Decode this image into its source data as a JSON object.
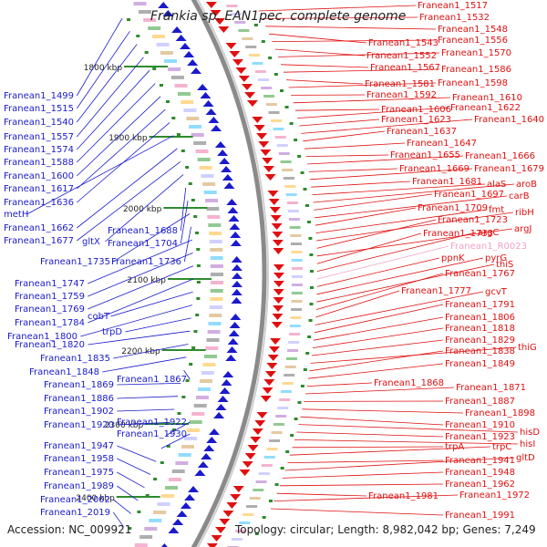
{
  "title": "Frankia sp. EAN1pec, complete genome",
  "accession_text": "Accession: NC_009921",
  "topology_text": "Topology: circular; Length: 8,982,042 bp; Genes: 7,249",
  "colors": {
    "left_genes": "#1a1acc",
    "right_genes": "#e01010",
    "rna_gene": "#f4a0c8",
    "backbone": "#8a8a8a",
    "ticks": "#2e8b2e"
  },
  "kbp_marks": [
    "1800 kbp",
    "1900 kbp",
    "2000 kbp",
    "2100 kbp",
    "2200 kbp",
    "2300 kbp",
    "2400 kbp"
  ],
  "left_labels": [
    "Franean1_1499",
    "Franean1_1515",
    "Franean1_1540",
    "Franean1_1557",
    "Franean1_1574",
    "Franean1_1588",
    "Franean1_1600",
    "Franean1_1617",
    "Franean1_1636",
    "metH",
    "Franean1_1662",
    "Franean1_1677",
    "gltX",
    "Franean1_1688",
    "Franean1_1704",
    "Franean1_1735",
    "Franean1_1736",
    "Franean1_1747",
    "Franean1_1759",
    "Franean1_1769",
    "Franean1_1784",
    "cobT",
    "Franean1_1800",
    "trpD",
    "Franean1_1820",
    "Franean1_1835",
    "Franean1_1848",
    "Franean1_1867",
    "Franean1_1869",
    "Franean1_1886",
    "Franean1_1902",
    "Franean1_1920",
    "Franean1_1922",
    "Franean1_1930",
    "Franean1_1947",
    "Franean1_1958",
    "Franean1_1975",
    "Franean1_1989",
    "Franean1_2002",
    "Franean1_2019"
  ],
  "right_labels": [
    "Franean1_1517",
    "Franean1_1532",
    "Franean1_1548",
    "Franean1_1543",
    "Franean1_1556",
    "Franean1_1552",
    "Franean1_1570",
    "Franean1_1567",
    "Franean1_1586",
    "Franean1_1581",
    "Franean1_1598",
    "Franean1_1592",
    "Franean1_1610",
    "Franean1_1606",
    "Franean1_1622",
    "Franean1_1623",
    "Franean1_1640",
    "Franean1_1637",
    "Franean1_1647",
    "Franean1_1655",
    "Franean1_1666",
    "Franean1_1669",
    "Franean1_1679",
    "Franean1_1681",
    "alaS",
    "aroB",
    "Franean1_1697",
    "carB",
    "Franean1_1709",
    "fmt",
    "ribH",
    "Franean1_1723",
    "argJ",
    "Franean1_1733",
    "argC",
    "Franean1_R0023",
    "ppnK",
    "pyrG",
    "thiS",
    "Franean1_1767",
    "Franean1_1777",
    "gcvT",
    "Franean1_1791",
    "Franean1_1806",
    "Franean1_1818",
    "Franean1_1829",
    "thiG",
    "Franean1_1838",
    "Franean1_1849",
    "Franean1_1868",
    "Franean1_1871",
    "Franean1_1887",
    "Franean1_1898",
    "Franean1_1910",
    "hisD",
    "Franean1_1923",
    "hisI",
    "trpA",
    "trpC",
    "Franean1_1941",
    "gltD",
    "Franean1_1948",
    "Franean1_1962",
    "Franean1_1981",
    "Franean1_1972",
    "Franean1_1991"
  ]
}
